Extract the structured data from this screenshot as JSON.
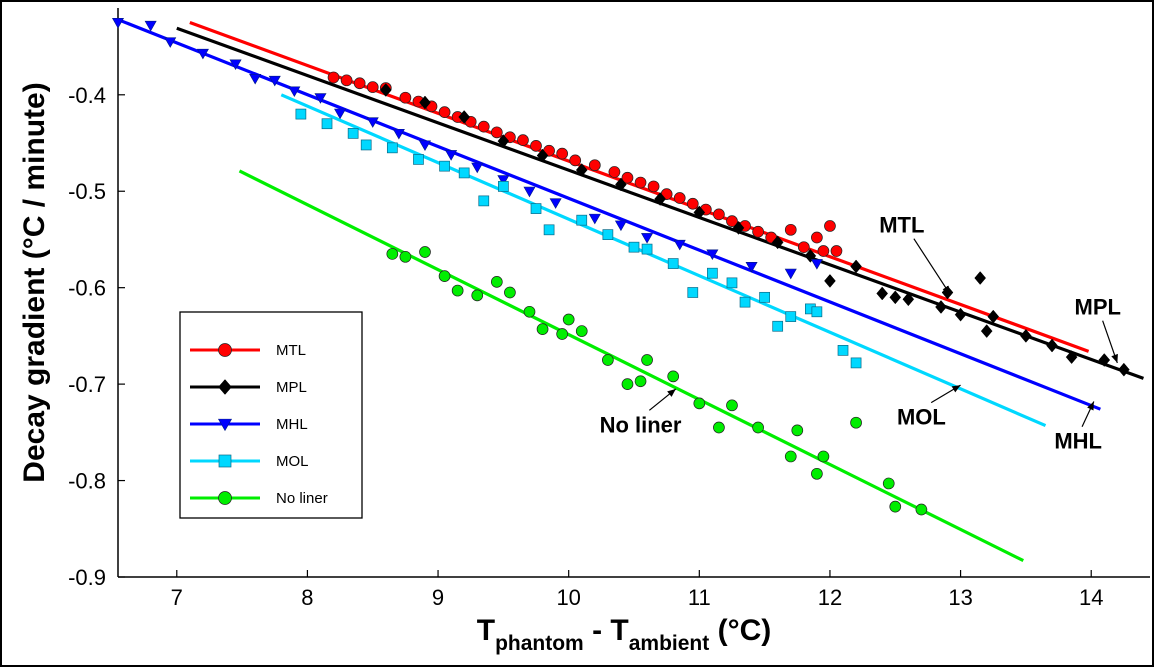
{
  "chart_data": {
    "type": "scatter",
    "xlabel": {
      "main": "T",
      "sub1": "phantom",
      "mid": " - T",
      "sub2": "ambient",
      "unit": " (°C)"
    },
    "ylabel": "Decay gradient (°C / minute)",
    "xlim": [
      6.55,
      14.45
    ],
    "ylim": [
      -0.9,
      -0.31
    ],
    "xticks": [
      7,
      8,
      9,
      10,
      11,
      12,
      13,
      14
    ],
    "xtick_labels": [
      "7",
      "8",
      "9",
      "10",
      "11",
      "12",
      "13",
      "14"
    ],
    "yticks": [
      -0.9,
      -0.8,
      -0.7,
      -0.6,
      -0.5,
      -0.4
    ],
    "ytick_labels": [
      "-0.9",
      "-0.8",
      "-0.7",
      "-0.6",
      "-0.5",
      "-0.4"
    ],
    "legend": {
      "placement": "lower-left"
    },
    "series": [
      {
        "name": "MTL",
        "color": "#ff0000",
        "marker": "circle",
        "fit": {
          "x": [
            7.1,
            13.98
          ],
          "y": [
            -0.325,
            -0.666
          ]
        },
        "points": [
          [
            8.2,
            -0.382
          ],
          [
            8.3,
            -0.385
          ],
          [
            8.4,
            -0.388
          ],
          [
            8.5,
            -0.392
          ],
          [
            8.6,
            -0.393
          ],
          [
            8.75,
            -0.403
          ],
          [
            8.85,
            -0.407
          ],
          [
            8.95,
            -0.412
          ],
          [
            9.05,
            -0.418
          ],
          [
            9.15,
            -0.423
          ],
          [
            9.25,
            -0.428
          ],
          [
            9.35,
            -0.433
          ],
          [
            9.45,
            -0.439
          ],
          [
            9.55,
            -0.444
          ],
          [
            9.65,
            -0.447
          ],
          [
            9.75,
            -0.453
          ],
          [
            9.85,
            -0.458
          ],
          [
            9.95,
            -0.461
          ],
          [
            10.05,
            -0.468
          ],
          [
            10.2,
            -0.473
          ],
          [
            10.35,
            -0.48
          ],
          [
            10.45,
            -0.486
          ],
          [
            10.55,
            -0.491
          ],
          [
            10.65,
            -0.495
          ],
          [
            10.75,
            -0.503
          ],
          [
            10.85,
            -0.507
          ],
          [
            10.95,
            -0.513
          ],
          [
            11.05,
            -0.519
          ],
          [
            11.15,
            -0.524
          ],
          [
            11.25,
            -0.531
          ],
          [
            11.35,
            -0.536
          ],
          [
            11.45,
            -0.542
          ],
          [
            11.55,
            -0.548
          ],
          [
            11.7,
            -0.54
          ],
          [
            11.8,
            -0.558
          ],
          [
            11.9,
            -0.548
          ],
          [
            11.95,
            -0.562
          ],
          [
            12.0,
            -0.536
          ],
          [
            12.05,
            -0.562
          ]
        ]
      },
      {
        "name": "MPL",
        "color": "#000000",
        "marker": "diamond",
        "fit": {
          "x": [
            7.0,
            14.4
          ],
          "y": [
            -0.331,
            -0.694
          ]
        },
        "points": [
          [
            8.6,
            -0.395
          ],
          [
            8.9,
            -0.408
          ],
          [
            9.2,
            -0.423
          ],
          [
            9.5,
            -0.448
          ],
          [
            9.8,
            -0.463
          ],
          [
            10.1,
            -0.478
          ],
          [
            10.4,
            -0.493
          ],
          [
            10.7,
            -0.508
          ],
          [
            11.0,
            -0.522
          ],
          [
            11.3,
            -0.538
          ],
          [
            11.6,
            -0.553
          ],
          [
            11.85,
            -0.567
          ],
          [
            12.0,
            -0.593
          ],
          [
            12.2,
            -0.578
          ],
          [
            12.4,
            -0.606
          ],
          [
            12.5,
            -0.61
          ],
          [
            12.6,
            -0.612
          ],
          [
            12.85,
            -0.62
          ],
          [
            12.9,
            -0.605
          ],
          [
            13.0,
            -0.628
          ],
          [
            13.15,
            -0.59
          ],
          [
            13.2,
            -0.645
          ],
          [
            13.25,
            -0.63
          ],
          [
            13.5,
            -0.65
          ],
          [
            13.7,
            -0.66
          ],
          [
            13.85,
            -0.672
          ],
          [
            14.1,
            -0.675
          ],
          [
            14.25,
            -0.685
          ]
        ]
      },
      {
        "name": "MHL",
        "color": "#0000ff",
        "marker": "triangle-down",
        "fit": {
          "x": [
            6.55,
            14.07
          ],
          "y": [
            -0.322,
            -0.726
          ]
        },
        "points": [
          [
            6.55,
            -0.325
          ],
          [
            6.8,
            -0.328
          ],
          [
            6.95,
            -0.345
          ],
          [
            7.2,
            -0.357
          ],
          [
            7.45,
            -0.368
          ],
          [
            7.6,
            -0.383
          ],
          [
            7.75,
            -0.385
          ],
          [
            7.9,
            -0.396
          ],
          [
            8.1,
            -0.403
          ],
          [
            8.25,
            -0.419
          ],
          [
            8.5,
            -0.428
          ],
          [
            8.7,
            -0.44
          ],
          [
            8.9,
            -0.452
          ],
          [
            9.1,
            -0.462
          ],
          [
            9.3,
            -0.475
          ],
          [
            9.5,
            -0.488
          ],
          [
            9.7,
            -0.5
          ],
          [
            9.9,
            -0.512
          ],
          [
            10.2,
            -0.528
          ],
          [
            10.4,
            -0.535
          ],
          [
            10.6,
            -0.548
          ],
          [
            10.85,
            -0.555
          ],
          [
            11.1,
            -0.565
          ],
          [
            11.4,
            -0.578
          ],
          [
            11.7,
            -0.585
          ],
          [
            11.9,
            -0.575
          ]
        ]
      },
      {
        "name": "MOL",
        "color": "#00d8ff",
        "marker": "square",
        "fit": {
          "x": [
            7.8,
            13.65
          ],
          "y": [
            -0.4,
            -0.743
          ]
        },
        "points": [
          [
            7.95,
            -0.42
          ],
          [
            8.15,
            -0.43
          ],
          [
            8.35,
            -0.44
          ],
          [
            8.45,
            -0.452
          ],
          [
            8.65,
            -0.455
          ],
          [
            8.85,
            -0.467
          ],
          [
            9.05,
            -0.474
          ],
          [
            9.2,
            -0.481
          ],
          [
            9.35,
            -0.51
          ],
          [
            9.5,
            -0.495
          ],
          [
            9.75,
            -0.518
          ],
          [
            9.85,
            -0.54
          ],
          [
            10.1,
            -0.53
          ],
          [
            10.3,
            -0.545
          ],
          [
            10.5,
            -0.558
          ],
          [
            10.6,
            -0.56
          ],
          [
            10.8,
            -0.575
          ],
          [
            10.95,
            -0.605
          ],
          [
            11.1,
            -0.585
          ],
          [
            11.25,
            -0.595
          ],
          [
            11.35,
            -0.615
          ],
          [
            11.5,
            -0.61
          ],
          [
            11.6,
            -0.64
          ],
          [
            11.7,
            -0.63
          ],
          [
            11.85,
            -0.622
          ],
          [
            11.9,
            -0.625
          ],
          [
            12.1,
            -0.665
          ],
          [
            12.2,
            -0.678
          ]
        ]
      },
      {
        "name": "No liner",
        "color": "#00ee00",
        "marker": "circle",
        "fit": {
          "x": [
            7.48,
            13.48
          ],
          "y": [
            -0.479,
            -0.883
          ]
        },
        "points": [
          [
            8.65,
            -0.565
          ],
          [
            8.75,
            -0.568
          ],
          [
            8.9,
            -0.563
          ],
          [
            9.05,
            -0.588
          ],
          [
            9.15,
            -0.603
          ],
          [
            9.3,
            -0.608
          ],
          [
            9.45,
            -0.594
          ],
          [
            9.55,
            -0.605
          ],
          [
            9.7,
            -0.625
          ],
          [
            9.8,
            -0.643
          ],
          [
            9.95,
            -0.648
          ],
          [
            10.0,
            -0.633
          ],
          [
            10.1,
            -0.645
          ],
          [
            10.3,
            -0.675
          ],
          [
            10.45,
            -0.7
          ],
          [
            10.55,
            -0.697
          ],
          [
            10.6,
            -0.675
          ],
          [
            10.8,
            -0.692
          ],
          [
            11.0,
            -0.72
          ],
          [
            11.15,
            -0.745
          ],
          [
            11.25,
            -0.722
          ],
          [
            11.45,
            -0.745
          ],
          [
            11.7,
            -0.775
          ],
          [
            11.75,
            -0.748
          ],
          [
            11.9,
            -0.793
          ],
          [
            11.95,
            -0.775
          ],
          [
            12.2,
            -0.74
          ],
          [
            12.45,
            -0.803
          ],
          [
            12.5,
            -0.827
          ],
          [
            12.7,
            -0.83
          ]
        ]
      }
    ],
    "annotations": [
      {
        "text": "MTL",
        "x": 12.55,
        "y": -0.543,
        "arrow_to": [
          12.92,
          -0.607
        ]
      },
      {
        "text": "MPL",
        "x": 14.05,
        "y": -0.628,
        "arrow_to": [
          14.2,
          -0.678
        ]
      },
      {
        "text": "MOL",
        "x": 12.7,
        "y": -0.742,
        "arrow_to": [
          13.0,
          -0.701
        ]
      },
      {
        "text": "MHL",
        "x": 13.9,
        "y": -0.767,
        "arrow_to": [
          14.02,
          -0.718
        ]
      },
      {
        "text": "No liner",
        "x": 10.55,
        "y": -0.75,
        "arrow_to": [
          10.82,
          -0.705
        ]
      }
    ]
  }
}
